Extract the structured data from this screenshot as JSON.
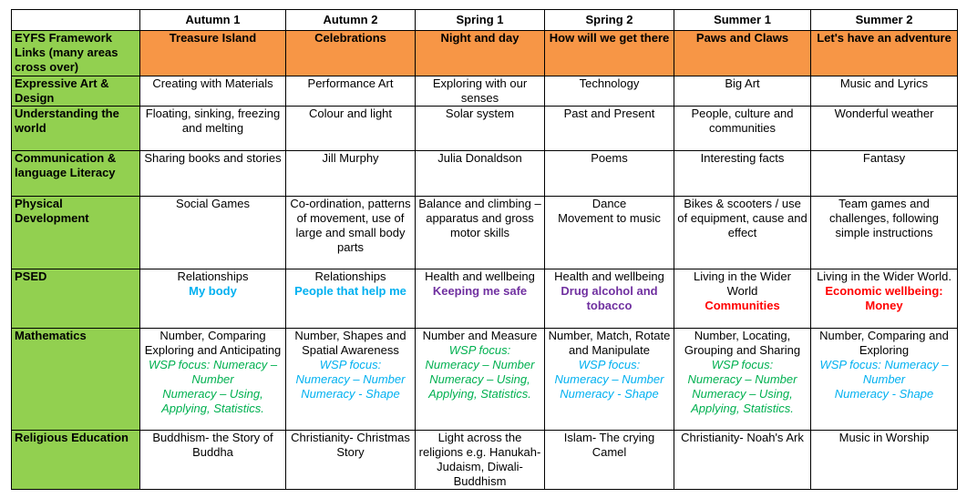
{
  "table": {
    "header": [
      "Autumn 1",
      "Autumn 2",
      "Spring 1",
      "Spring 2",
      "Summer 1",
      "Summer 2"
    ],
    "rows": [
      {
        "label": "EYFS Framework Links (many areas cross over)",
        "cells": [
          [
            "Treasure Island"
          ],
          [
            "Celebrations"
          ],
          [
            "Night and day"
          ],
          [
            "How will we get there"
          ],
          [
            "Paws and Claws"
          ],
          [
            "Let's have an adventure"
          ]
        ]
      },
      {
        "label": "Expressive Art & Design",
        "cells": [
          [
            "Creating with Materials"
          ],
          [
            "Performance Art"
          ],
          [
            "Exploring with our senses"
          ],
          [
            "Technology"
          ],
          [
            "Big Art"
          ],
          [
            "Music and Lyrics"
          ]
        ]
      },
      {
        "label": "Understanding the world",
        "cells": [
          [
            "Floating, sinking, freezing and melting"
          ],
          [
            "Colour and light"
          ],
          [
            "Solar system"
          ],
          [
            "Past and Present"
          ],
          [
            "People, culture and communities"
          ],
          [
            "Wonderful weather"
          ]
        ]
      },
      {
        "label": "Communication & language Literacy",
        "cells": [
          [
            "Sharing books and stories"
          ],
          [
            "Jill Murphy"
          ],
          [
            "Julia Donaldson"
          ],
          [
            "Poems"
          ],
          [
            "Interesting facts"
          ],
          [
            "Fantasy"
          ]
        ]
      },
      {
        "label": "Physical Development",
        "cells": [
          [
            "Social Games"
          ],
          [
            "Co-ordination, patterns of movement, use of large and small body parts"
          ],
          [
            "Balance and climbing – apparatus and gross motor skills"
          ],
          [
            "Dance",
            "Movement to music"
          ],
          [
            "Bikes & scooters / use of equipment, cause and effect"
          ],
          [
            "Team games and challenges, following simple instructions"
          ]
        ]
      },
      {
        "label": "PSED",
        "cells": [
          [
            "Relationships",
            "My body"
          ],
          [
            "Relationships",
            "People that help me"
          ],
          [
            "Health and wellbeing",
            "Keeping me safe"
          ],
          [
            "Health and wellbeing",
            "Drug alcohol and tobacco"
          ],
          [
            "Living in the Wider World",
            "Communities"
          ],
          [
            "Living in the Wider World.",
            "Economic wellbeing: Money"
          ]
        ]
      },
      {
        "label": "Mathematics",
        "cells": [
          [
            "Number, Comparing Exploring and Anticipating",
            "WSP focus: Numeracy – Number",
            "Numeracy – Using, Applying, Statistics."
          ],
          [
            "Number, Shapes and Spatial Awareness",
            "WSP focus:",
            "Numeracy – Number",
            "Numeracy - Shape"
          ],
          [
            "Number and Measure",
            "WSP focus:",
            "Numeracy – Number",
            "Numeracy – Using, Applying, Statistics."
          ],
          [
            "Number, Match, Rotate and Manipulate",
            "WSP focus:",
            "Numeracy – Number",
            "Numeracy - Shape"
          ],
          [
            "Number, Locating, Grouping and Sharing",
            "WSP focus:",
            "Numeracy – Number",
            "Numeracy – Using, Applying, Statistics."
          ],
          [
            "Number, Comparing and Exploring",
            "WSP focus: Numeracy – Number",
            "Numeracy - Shape"
          ]
        ]
      },
      {
        "label": "Religious Education",
        "cells": [
          [
            "Buddhism- the Story of Buddha"
          ],
          [
            "Christianity- Christmas Story"
          ],
          [
            "Light across the religions e.g. Hanukah- Judaism, Diwali- Buddhism"
          ],
          [
            "Islam- The crying Camel"
          ],
          [
            "Christianity- Noah's Ark"
          ],
          [
            "Music in Worship"
          ]
        ]
      }
    ]
  }
}
